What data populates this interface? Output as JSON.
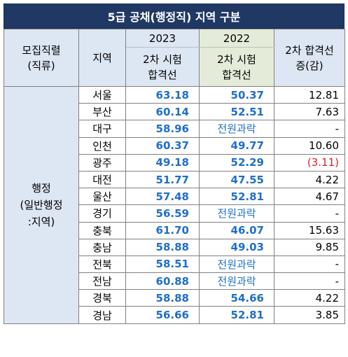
{
  "title": "5급 공채(행정직) 지역 구분",
  "headers": {
    "job": [
      "모집직렬",
      "(직류)"
    ],
    "region": "지역",
    "year_2023": "2023",
    "year_2022": "2022",
    "sub_2023": [
      "2차 시험",
      "합격선"
    ],
    "sub_2022": [
      "2차 시험",
      "합격선"
    ],
    "diff": [
      "2차 합격선",
      "증(감)"
    ]
  },
  "category": [
    "행정",
    "(일반행정",
    ":지역)"
  ],
  "rows": [
    {
      "region": "서울",
      "y2023": "63.18",
      "y2022": "50.37",
      "diff": "12.81"
    },
    {
      "region": "부산",
      "y2023": "60.14",
      "y2022": "52.51",
      "diff": "7.63"
    },
    {
      "region": "대구",
      "y2023": "58.96",
      "y2022": "전원과락",
      "diff": "-"
    },
    {
      "region": "인천",
      "y2023": "60.37",
      "y2022": "49.77",
      "diff": "10.60"
    },
    {
      "region": "광주",
      "y2023": "49.18",
      "y2022": "52.29",
      "diff": "(3.11)"
    },
    {
      "region": "대전",
      "y2023": "51.77",
      "y2022": "47.55",
      "diff": "4.22"
    },
    {
      "region": "울산",
      "y2023": "57.48",
      "y2022": "52.81",
      "diff": "4.67"
    },
    {
      "region": "경기",
      "y2023": "56.59",
      "y2022": "전원과락",
      "diff": "-"
    },
    {
      "region": "충북",
      "y2023": "61.70",
      "y2022": "46.07",
      "diff": "15.63"
    },
    {
      "region": "충남",
      "y2023": "58.88",
      "y2022": "49.03",
      "diff": "9.85"
    },
    {
      "region": "전북",
      "y2023": "58.51",
      "y2022": "전원과락",
      "diff": "-"
    },
    {
      "region": "전남",
      "y2023": "60.88",
      "y2022": "전원과락",
      "diff": "-"
    },
    {
      "region": "경북",
      "y2023": "58.88",
      "y2022": "54.66",
      "diff": "4.22"
    },
    {
      "region": "경남",
      "y2023": "56.66",
      "y2022": "52.81",
      "diff": "3.85"
    }
  ],
  "colors": {
    "title_bg": "#203864",
    "header_bg": "#dde6f3",
    "header_2022_bg": "#e4ecd9",
    "value_blue": "#1f6fc6",
    "negative_red": "#e02020"
  }
}
